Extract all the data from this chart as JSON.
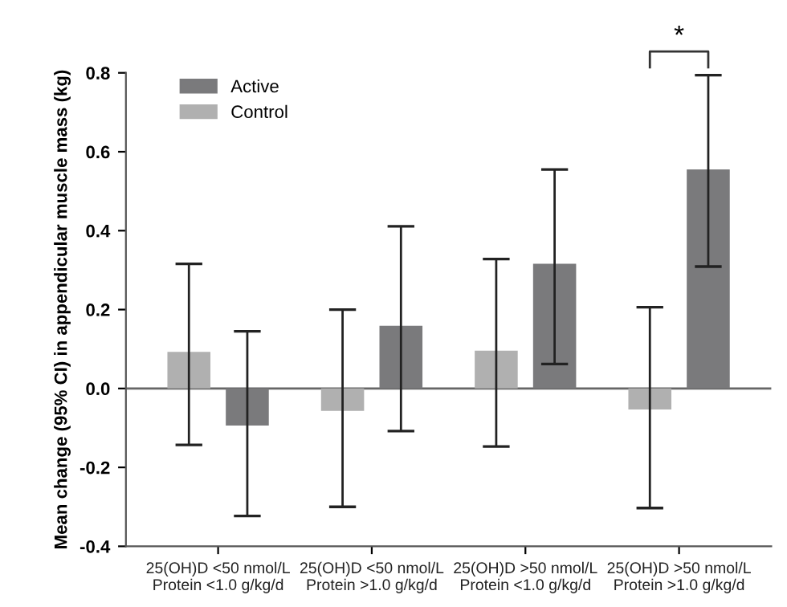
{
  "chart_data": {
    "type": "bar",
    "ylabel": "Mean change (95% CI) in appendicular muscle mass (kg)",
    "categories": [
      "25(OH)D <50 nmol/L\nProtein <1.0 g/kg/d",
      "25(OH)D <50 nmol/L\nProtein >1.0 g/kg/d",
      "25(OH)D >50 nmol/L\nProtein <1.0 g/kg/d",
      "25(OH)D >50 nmol/L\nProtein >1.0 g/kg/d"
    ],
    "series": [
      {
        "name": "Control",
        "color": "#b0b0b0",
        "values": [
          0.093,
          -0.057,
          0.096,
          -0.053
        ],
        "errors": [
          [
            -0.143,
            0.316
          ],
          [
            -0.3,
            0.2
          ],
          [
            -0.147,
            0.328
          ],
          [
            -0.303,
            0.206
          ]
        ]
      },
      {
        "name": "Active",
        "color": "#7a7a7c",
        "values": [
          -0.094,
          0.159,
          0.316,
          0.555
        ],
        "errors": [
          [
            -0.323,
            0.145
          ],
          [
            -0.108,
            0.411
          ],
          [
            0.062,
            0.555
          ],
          [
            0.309,
            0.794
          ]
        ]
      }
    ],
    "ylim": [
      -0.4,
      0.8
    ],
    "yticks": [
      {
        "value": -0.4,
        "label": "-0.4"
      },
      {
        "value": -0.2,
        "label": "-0.2"
      },
      {
        "value": 0,
        "label": "0.0"
      },
      0.2,
      0.4,
      0.6,
      0.8
    ],
    "legend": "top left",
    "annotations": [
      "*"
    ]
  }
}
